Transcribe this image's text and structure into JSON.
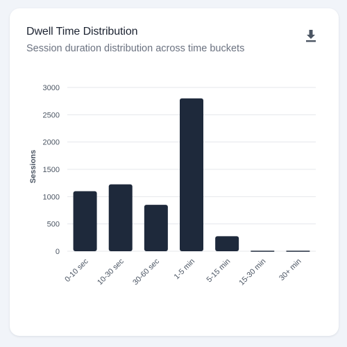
{
  "card": {
    "title": "Dwell Time Distribution",
    "subtitle": "Session duration distribution across time buckets",
    "download_icon": "download-icon"
  },
  "colors": {
    "bar": "#1e293b",
    "grid": "#e5e7eb",
    "text": "#4b5563"
  },
  "chart_data": {
    "type": "bar",
    "categories": [
      "0-10 sec",
      "10-30 sec",
      "30-60 sec",
      "1-5 min",
      "5-15 min",
      "15-30 min",
      "30+ min"
    ],
    "values": [
      1100,
      1225,
      850,
      2800,
      275,
      10,
      10
    ],
    "ylabel": "Sessions",
    "xlabel": "",
    "ylim": [
      0,
      3000
    ],
    "yticks": [
      "0",
      "500",
      "1000",
      "1500",
      "2000",
      "2500",
      "3000"
    ],
    "grid": true,
    "legend": "none"
  }
}
